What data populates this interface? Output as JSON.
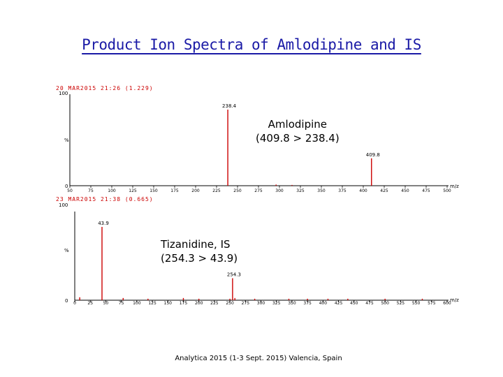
{
  "title": "Product Ion Spectra of Amlodipine and IS",
  "footer": "Analytica 2015 (1-3 Sept. 2015) Valencia, Spain",
  "colors": {
    "title": "#1a1aa6",
    "peaks": "#cc0000",
    "header": "#cc0000",
    "axis": "#000000"
  },
  "chart_data": [
    {
      "type": "bar",
      "name": "Amlodipine (409.8 > 238.4)",
      "label_line1": "Amlodipine",
      "label_line2": "(409.8 > 238.4)",
      "header": "20 MAR2015  21:26 (1.229)",
      "y_top_label": "100",
      "y_mid_label": "%",
      "y_bottom_label": "0",
      "x_unit": "m/z",
      "xlim": [
        50,
        500
      ],
      "ylim": [
        0,
        100
      ],
      "x_ticks": [
        "50",
        "75",
        "100",
        "125",
        "150",
        "175",
        "200",
        "225",
        "250",
        "275",
        "300",
        "325",
        "350",
        "375",
        "400",
        "425",
        "450",
        "475",
        "500"
      ],
      "peaks": [
        {
          "x": 238.4,
          "y": 100,
          "label": "238.4"
        },
        {
          "x": 409.8,
          "y": 36,
          "label": "409.8"
        },
        {
          "x": 296,
          "y": 1.5
        },
        {
          "x": 315,
          "y": 1
        }
      ]
    },
    {
      "type": "bar",
      "name": "Tizanidine, IS (254.3 > 43.9)",
      "label_line1": "Tizanidine, IS",
      "label_line2": "(254.3 > 43.9)",
      "header": "23 MAR2015  21:38 (0.665)",
      "y_top_label": "100",
      "y_mid_label": "%",
      "y_bottom_label": "0",
      "x_unit": "m/z",
      "xlim": [
        0,
        600
      ],
      "ylim": [
        0,
        100
      ],
      "x_ticks": [
        "0",
        "25",
        "50",
        "75",
        "100",
        "125",
        "150",
        "175",
        "200",
        "225",
        "250",
        "275",
        "300",
        "325",
        "350",
        "375",
        "400",
        "425",
        "450",
        "475",
        "500",
        "525",
        "550",
        "575",
        "600"
      ],
      "peaks": [
        {
          "x": 43.9,
          "y": 100,
          "label": "43.9"
        },
        {
          "x": 254.3,
          "y": 30,
          "label": "254.3"
        },
        {
          "x": 8,
          "y": 4
        },
        {
          "x": 78,
          "y": 3
        },
        {
          "x": 118,
          "y": 2
        },
        {
          "x": 175,
          "y": 3
        },
        {
          "x": 200,
          "y": 2
        },
        {
          "x": 250,
          "y": 2
        },
        {
          "x": 258,
          "y": 3
        },
        {
          "x": 290,
          "y": 2
        },
        {
          "x": 345,
          "y": 2
        },
        {
          "x": 375,
          "y": 2
        },
        {
          "x": 408,
          "y": 2
        },
        {
          "x": 440,
          "y": 2
        },
        {
          "x": 500,
          "y": 2
        },
        {
          "x": 560,
          "y": 2
        }
      ]
    }
  ]
}
